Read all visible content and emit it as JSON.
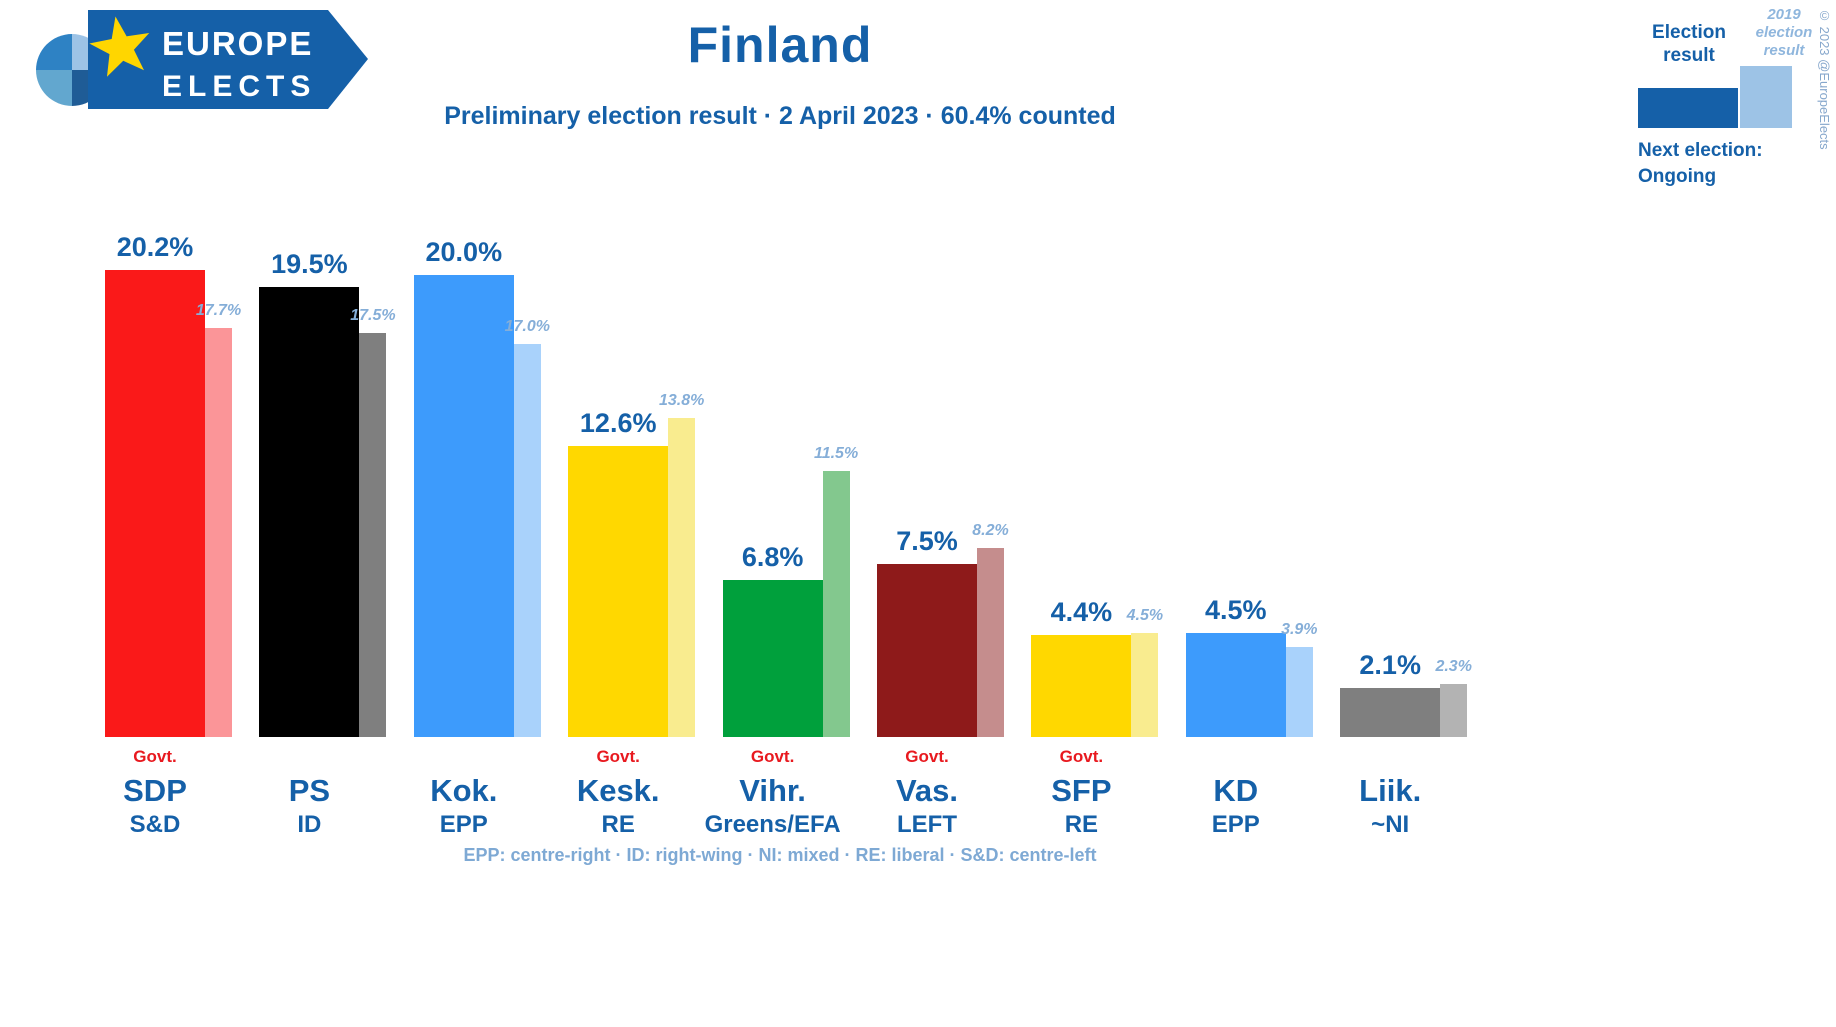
{
  "page": {
    "title": "Finland",
    "subtitle": "Preliminary election result · 2 April 2023 · 60.4% counted",
    "footnote": "EPP: centre-right · ID: right-wing · NI: mixed · RE: liberal · S&D: centre-left",
    "copyright": "© 2023 @EuropeElects"
  },
  "logo": {
    "line1": "EUROPE",
    "line2": "ELECTS"
  },
  "legend": {
    "current_label": "Election result",
    "previous_label": "2019 election result",
    "next_election_label": "Next election:",
    "next_election_value": "Ongoing",
    "current_color": "#1560a8",
    "previous_color": "#9dc3e6"
  },
  "chart_data": {
    "type": "bar",
    "title": "Finland",
    "subtitle": "Preliminary election result · 2 April 2023 · 60.4% counted",
    "categories": [
      "SDP",
      "PS",
      "Kok.",
      "Kesk.",
      "Vihr.",
      "Vas.",
      "SFP",
      "KD",
      "Liik."
    ],
    "groups": [
      "S&D",
      "ID",
      "EPP",
      "RE",
      "Greens/EFA",
      "LEFT",
      "RE",
      "EPP",
      "~NI"
    ],
    "series": [
      {
        "name": "Election result",
        "values": [
          20.2,
          19.5,
          20.0,
          12.6,
          6.8,
          7.5,
          4.4,
          4.5,
          2.1
        ]
      },
      {
        "name": "2019 election result",
        "values": [
          17.7,
          17.5,
          17.0,
          13.8,
          11.5,
          8.2,
          4.5,
          3.9,
          2.3
        ]
      }
    ],
    "ylim": [
      0,
      22
    ],
    "grid": false,
    "legend_position": "top-right",
    "govt_label": "Govt.",
    "parties": [
      {
        "abbr": "SDP",
        "group": "S&D",
        "value": 20.2,
        "prev": 17.7,
        "color": "#fa1919",
        "prev_color": "#fb9598",
        "govt": true
      },
      {
        "abbr": "PS",
        "group": "ID",
        "value": 19.5,
        "prev": 17.5,
        "color": "#000000",
        "prev_color": "#7f7f7f",
        "govt": false
      },
      {
        "abbr": "Kok.",
        "group": "EPP",
        "value": 20.0,
        "prev": 17.0,
        "color": "#3d9bfc",
        "prev_color": "#a9d2fb",
        "govt": false
      },
      {
        "abbr": "Kesk.",
        "group": "RE",
        "value": 12.6,
        "prev": 13.8,
        "color": "#ffd800",
        "prev_color": "#f9ec8f",
        "govt": true
      },
      {
        "abbr": "Vihr.",
        "group": "Greens/EFA",
        "value": 6.8,
        "prev": 11.5,
        "color": "#00a03c",
        "prev_color": "#83c88e",
        "govt": true
      },
      {
        "abbr": "Vas.",
        "group": "LEFT",
        "value": 7.5,
        "prev": 8.2,
        "color": "#8e1a1a",
        "prev_color": "#c58d8d",
        "govt": true
      },
      {
        "abbr": "SFP",
        "group": "RE",
        "value": 4.4,
        "prev": 4.5,
        "color": "#ffd800",
        "prev_color": "#f9ec8f",
        "govt": true
      },
      {
        "abbr": "KD",
        "group": "EPP",
        "value": 4.5,
        "prev": 3.9,
        "color": "#3d9bfc",
        "prev_color": "#a9d2fb",
        "govt": false
      },
      {
        "abbr": "Liik.",
        "group": "~NI",
        "value": 2.1,
        "prev": 2.3,
        "color": "#7f7f7f",
        "prev_color": "#b3b3b3",
        "govt": false
      }
    ]
  }
}
